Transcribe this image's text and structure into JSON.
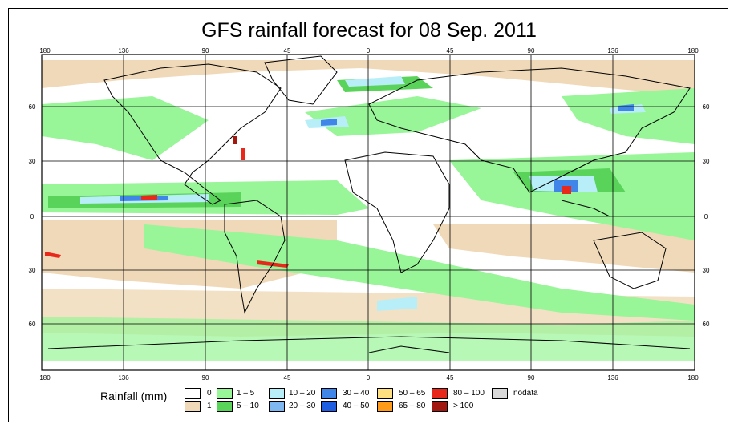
{
  "title": "GFS rainfall forecast for 08 Sep. 2011",
  "top_ticks": [
    "180",
    "136",
    "90",
    "45",
    "0",
    "45",
    "90",
    "136",
    "180"
  ],
  "bottom_ticks": [
    "180",
    "136",
    "90",
    "45",
    "0",
    "45",
    "90",
    "136",
    "180"
  ],
  "left_ticks": [
    "60",
    "30",
    "0",
    "30",
    "60"
  ],
  "right_ticks": [
    "60",
    "30",
    "0",
    "30",
    "60"
  ],
  "legend": {
    "title": "Rainfall (mm)",
    "items": [
      {
        "label": "0",
        "color": "#ffffff"
      },
      {
        "label": "1",
        "color": "#f0d9b8"
      },
      {
        "label": "1 – 5",
        "color": "#98f598"
      },
      {
        "label": "5 – 10",
        "color": "#5ad35a"
      },
      {
        "label": "10 – 20",
        "color": "#b8eef8"
      },
      {
        "label": "20 – 30",
        "color": "#7fb8f0"
      },
      {
        "label": "30 – 40",
        "color": "#3f86e8"
      },
      {
        "label": "40 – 50",
        "color": "#1f5ee0"
      },
      {
        "label": "50 – 65",
        "color": "#ffe080"
      },
      {
        "label": "65 – 80",
        "color": "#ff9a1a"
      },
      {
        "label": "80 – 100",
        "color": "#e8281a"
      },
      {
        "label": "> 100",
        "color": "#a01810"
      },
      {
        "label": "nodata",
        "color": "#d8d8d8"
      }
    ]
  }
}
